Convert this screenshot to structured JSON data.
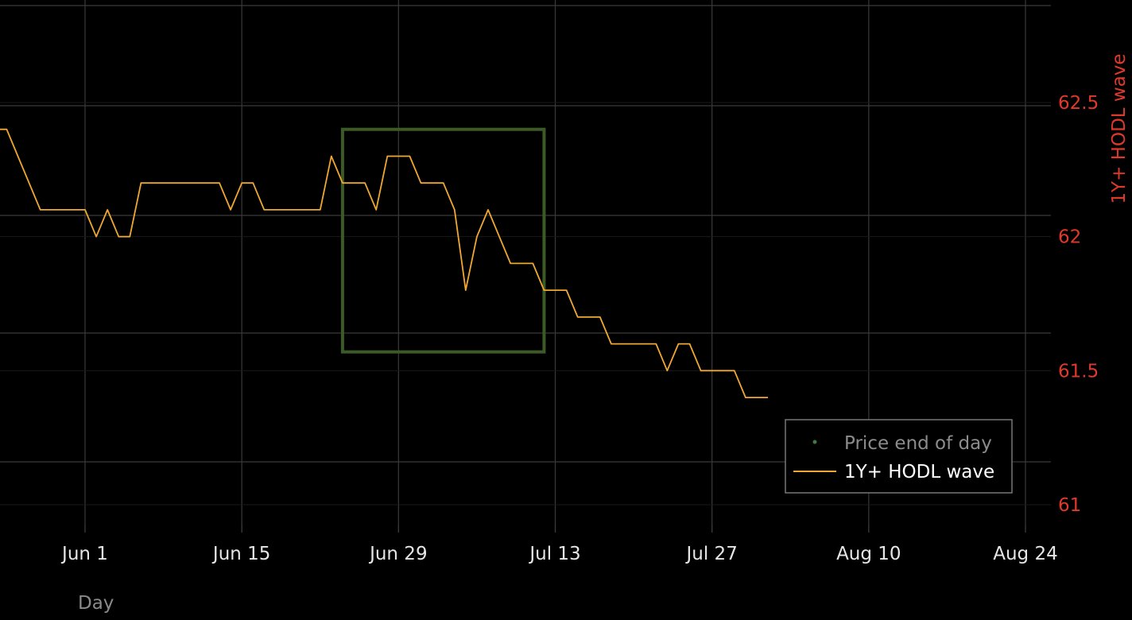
{
  "colors": {
    "background": "#000000",
    "grid": "#3a3a3a",
    "grid_minor": "#1a1a1a",
    "series_line": "#f0a830",
    "right_axis": "#e0392b",
    "tick_text": "#e6e6e6",
    "axis_title": "#8a8a8a",
    "legend_border": "#777777",
    "legend_bg": "#000000",
    "legend_price_text": "#8c8c8c",
    "legend_hodl_text": "#ffffff",
    "price_marker": "#3f7a3f",
    "highlight_box": "#3b5a25"
  },
  "chart_data": {
    "type": "line",
    "xlabel": "Day",
    "ylabel_right": "1Y+ HODL wave",
    "x_ticks": [
      {
        "date": "2023-06-01",
        "label": "Jun 1"
      },
      {
        "date": "2023-06-15",
        "label": "Jun 15"
      },
      {
        "date": "2023-06-29",
        "label": "Jun 29"
      },
      {
        "date": "2023-07-13",
        "label": "Jul 13"
      },
      {
        "date": "2023-07-27",
        "label": "Jul 27"
      },
      {
        "date": "2023-08-10",
        "label": "Aug 10"
      },
      {
        "date": "2023-08-24",
        "label": "Aug 24"
      }
    ],
    "xlim": [
      "2023-05-24",
      "2023-08-26"
    ],
    "y_right_ticks": [
      61,
      61.5,
      62,
      62.5
    ],
    "y_right_tick_labels": [
      "61",
      "61.5",
      "62",
      "62.5"
    ],
    "y_right_lim": [
      60.85,
      62.88
    ],
    "legend": {
      "position": "bottom-right",
      "entries": [
        {
          "label": "Price end of day",
          "marker": "dot"
        },
        {
          "label": "1Y+ HODL wave",
          "marker": "line"
        }
      ]
    },
    "highlight_range": {
      "x": [
        "2023-06-24",
        "2023-07-12"
      ],
      "y": [
        61.57,
        62.4
      ]
    },
    "series": [
      {
        "name": "1Y+ HODL wave",
        "x": [
          "2023-05-24",
          "2023-05-25",
          "2023-05-26",
          "2023-05-27",
          "2023-05-28",
          "2023-05-29",
          "2023-05-30",
          "2023-05-31",
          "2023-06-01",
          "2023-06-02",
          "2023-06-03",
          "2023-06-04",
          "2023-06-05",
          "2023-06-06",
          "2023-06-07",
          "2023-06-08",
          "2023-06-09",
          "2023-06-10",
          "2023-06-11",
          "2023-06-12",
          "2023-06-13",
          "2023-06-14",
          "2023-06-15",
          "2023-06-16",
          "2023-06-17",
          "2023-06-18",
          "2023-06-19",
          "2023-06-20",
          "2023-06-21",
          "2023-06-22",
          "2023-06-23",
          "2023-06-24",
          "2023-06-25",
          "2023-06-26",
          "2023-06-27",
          "2023-06-28",
          "2023-06-29",
          "2023-06-30",
          "2023-07-01",
          "2023-07-02",
          "2023-07-03",
          "2023-07-04",
          "2023-07-05",
          "2023-07-06",
          "2023-07-07",
          "2023-07-08",
          "2023-07-09",
          "2023-07-10",
          "2023-07-11",
          "2023-07-12",
          "2023-07-13",
          "2023-07-14",
          "2023-07-15",
          "2023-07-16",
          "2023-07-17",
          "2023-07-18",
          "2023-07-19",
          "2023-07-20",
          "2023-07-21",
          "2023-07-22",
          "2023-07-23",
          "2023-07-24",
          "2023-07-25",
          "2023-07-26",
          "2023-07-27",
          "2023-07-28",
          "2023-07-29",
          "2023-07-30",
          "2023-07-31",
          "2023-08-01"
        ],
        "y": [
          62.4,
          62.4,
          62.3,
          62.2,
          62.1,
          62.1,
          62.1,
          62.1,
          62.1,
          62.0,
          62.1,
          62.0,
          62.0,
          62.2,
          62.2,
          62.2,
          62.2,
          62.2,
          62.2,
          62.2,
          62.2,
          62.1,
          62.2,
          62.2,
          62.1,
          62.1,
          62.1,
          62.1,
          62.1,
          62.1,
          62.3,
          62.2,
          62.2,
          62.2,
          62.1,
          62.3,
          62.3,
          62.3,
          62.2,
          62.2,
          62.2,
          62.1,
          61.8,
          62.0,
          62.1,
          62.0,
          61.9,
          61.9,
          61.9,
          61.8,
          61.8,
          61.8,
          61.7,
          61.7,
          61.7,
          61.6,
          61.6,
          61.6,
          61.6,
          61.6,
          61.5,
          61.6,
          61.6,
          61.5,
          61.5,
          61.5,
          61.5,
          61.4,
          61.4,
          61.4
        ]
      }
    ]
  }
}
